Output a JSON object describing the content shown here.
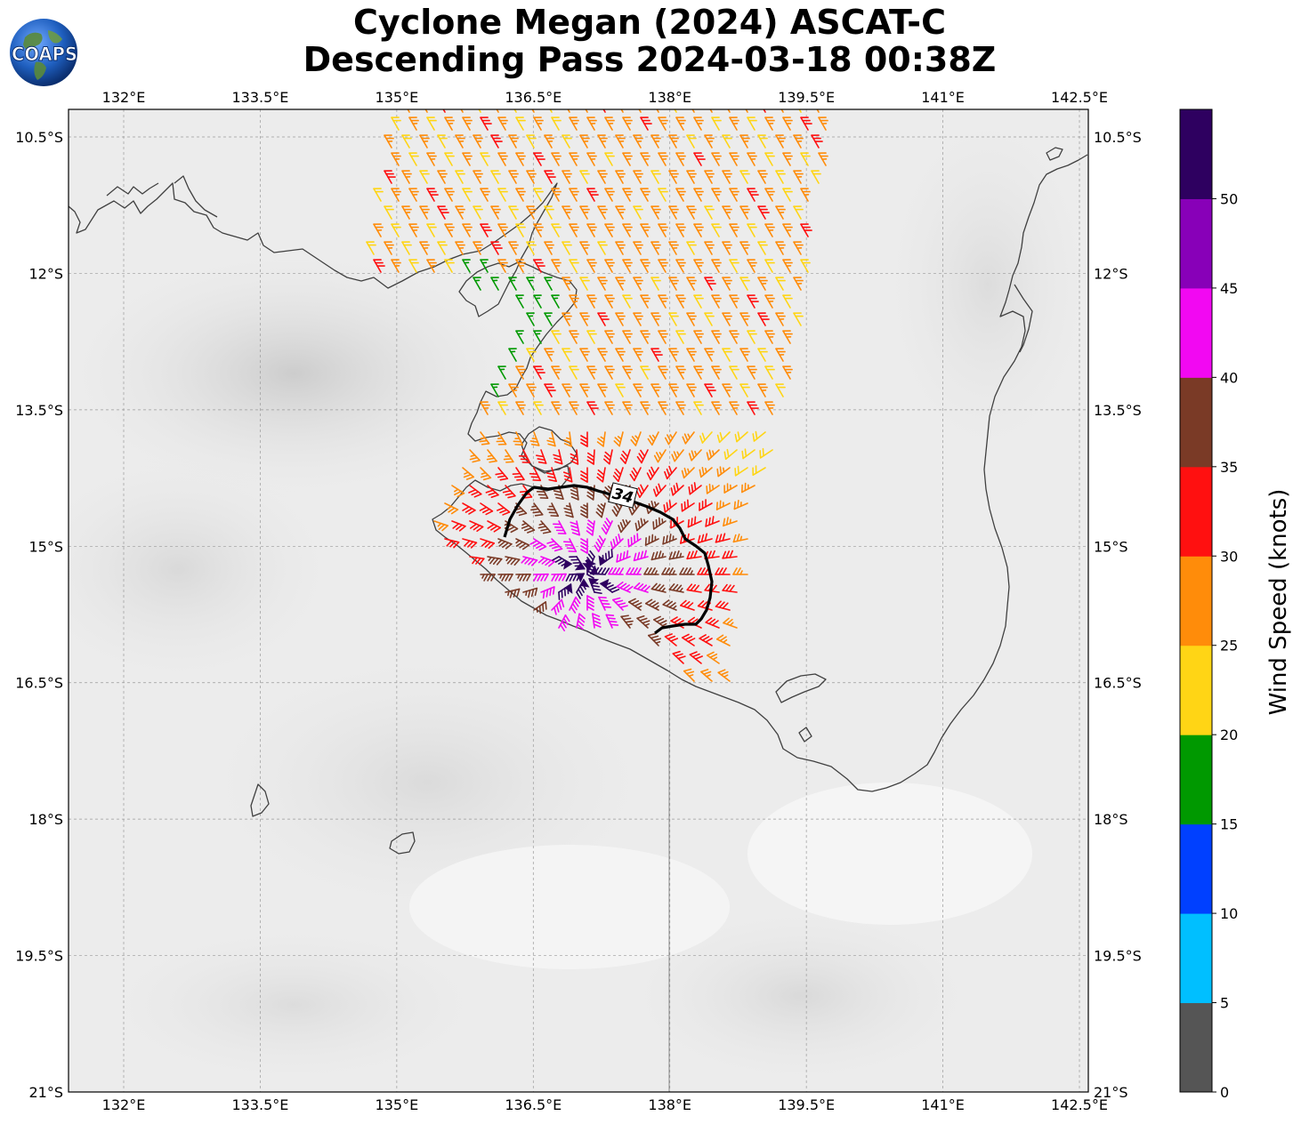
{
  "title": {
    "line1": "Cyclone Megan (2024) ASCAT-C",
    "line2": "Descending Pass 2024-03-18 00:38Z"
  },
  "logo": {
    "text": "COAPS",
    "icon": "globe-icon"
  },
  "map": {
    "lon_range": [
      131.4,
      142.6
    ],
    "lat_range": [
      -21.0,
      -10.2
    ],
    "lon_ticks": [
      "132°E",
      "133.5°E",
      "135°E",
      "136.5°E",
      "138°E",
      "139.5°E",
      "141°E",
      "142.5°E"
    ],
    "lat_ticks": [
      "10.5°S",
      "12°S",
      "13.5°S",
      "15°S",
      "16.5°S",
      "18°S",
      "19.5°S",
      "21°S"
    ],
    "gridlines": true,
    "contour_label": "34"
  },
  "colorbar": {
    "label": "Wind Speed (knots)",
    "ticks": [
      "0",
      "5",
      "10",
      "15",
      "20",
      "25",
      "30",
      "35",
      "40",
      "45",
      "50"
    ],
    "colors": [
      "#555555",
      "#00bfff",
      "#0040ff",
      "#009900",
      "#ffd515",
      "#ff8c0a",
      "#ff1010",
      "#7a3a26",
      "#f208f2",
      "#8800b8",
      "#2e0060"
    ]
  }
}
